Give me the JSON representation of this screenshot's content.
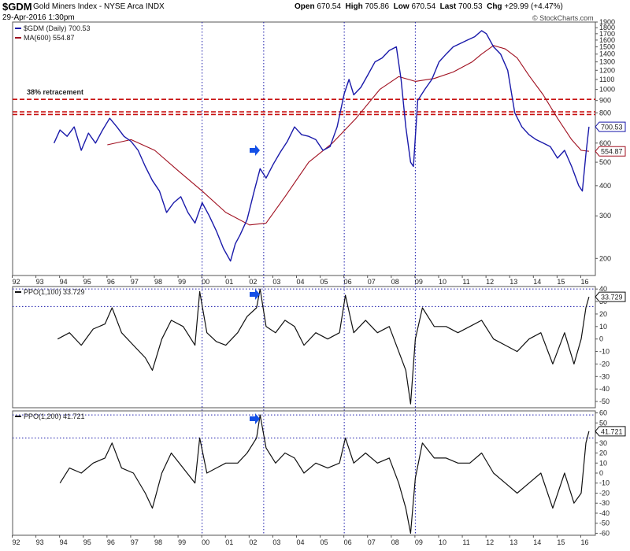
{
  "header": {
    "symbol": "$GDM",
    "name": "Gold Miners Index - NYSE Arca INDX",
    "datetime": "29-Apr-2016 1:30pm",
    "open_label": "Open",
    "open": "670.54",
    "high_label": "High",
    "high": "705.86",
    "low_label": "Low",
    "low": "670.54",
    "last_label": "Last",
    "last": "700.53",
    "chg_label": "Chg",
    "chg": "+29.99 (+4.47%)",
    "watermark": "© StockCharts.com"
  },
  "colors": {
    "price": "#1a1aaa",
    "ma": "#a01020",
    "retrace": "#c81010",
    "guide": "#1a1aaa",
    "osc": "#111111",
    "arrow": "#1450e6"
  },
  "chart_data": [
    {
      "type": "line",
      "panel": "price",
      "scale": "log",
      "ylim": [
        170,
        1900
      ],
      "xlim": [
        1992.0,
        2016.6
      ],
      "legend": [
        {
          "label": "$GDM (Daily)",
          "value": "700.53"
        },
        {
          "label": "MA(600)",
          "value": "554.87"
        }
      ],
      "annotation": "38% retracement",
      "retracement_levels": [
        910,
        808,
        788
      ],
      "price_tag": "700.53",
      "ma_tag": "554.87",
      "yticks": [
        200,
        300,
        400,
        500,
        600,
        700,
        800,
        900,
        1000,
        1100,
        1200,
        1300,
        1400,
        1500,
        1600,
        1700,
        1800,
        1900
      ],
      "series": [
        {
          "name": "$GDM (Daily)",
          "x": [
            1993.75,
            1994.0,
            1994.3,
            1994.6,
            1994.9,
            1995.2,
            1995.5,
            1995.8,
            1996.1,
            1996.4,
            1996.7,
            1997.0,
            1997.3,
            1997.6,
            1997.9,
            1998.2,
            1998.5,
            1998.8,
            1999.1,
            1999.4,
            1999.7,
            2000.0,
            2000.3,
            2000.6,
            2000.9,
            2001.2,
            2001.4,
            2001.6,
            2001.9,
            2002.2,
            2002.45,
            2002.7,
            2003.0,
            2003.3,
            2003.6,
            2003.9,
            2004.2,
            2004.5,
            2004.8,
            2005.1,
            2005.4,
            2005.7,
            2006.0,
            2006.2,
            2006.4,
            2006.7,
            2007.0,
            2007.3,
            2007.6,
            2007.9,
            2008.2,
            2008.4,
            2008.6,
            2008.8,
            2008.92,
            2009.1,
            2009.4,
            2009.7,
            2010.0,
            2010.3,
            2010.6,
            2010.9,
            2011.2,
            2011.5,
            2011.8,
            2012.0,
            2012.3,
            2012.6,
            2012.9,
            2013.2,
            2013.5,
            2013.8,
            2014.1,
            2014.4,
            2014.7,
            2015.0,
            2015.3,
            2015.6,
            2015.9,
            2016.05,
            2016.2,
            2016.33
          ],
          "values": [
            600,
            680,
            640,
            700,
            560,
            660,
            600,
            680,
            760,
            700,
            640,
            610,
            560,
            480,
            420,
            380,
            310,
            340,
            360,
            310,
            280,
            340,
            300,
            260,
            220,
            195,
            230,
            250,
            290,
            380,
            470,
            430,
            490,
            550,
            610,
            700,
            650,
            640,
            620,
            560,
            580,
            700,
            960,
            1100,
            950,
            1020,
            1150,
            1300,
            1350,
            1450,
            1500,
            1100,
            700,
            500,
            480,
            900,
            1000,
            1100,
            1300,
            1400,
            1500,
            1550,
            1600,
            1650,
            1750,
            1700,
            1500,
            1400,
            1200,
            800,
            700,
            650,
            620,
            600,
            580,
            520,
            560,
            480,
            400,
            380,
            540,
            700.53
          ]
        },
        {
          "name": "MA(600)",
          "x": [
            1996.0,
            1997.0,
            1998.0,
            1999.0,
            2000.0,
            2001.0,
            2002.0,
            2002.7,
            2003.5,
            2004.5,
            2005.5,
            2006.5,
            2007.5,
            2008.3,
            2009.0,
            2009.8,
            2010.6,
            2011.4,
            2011.8,
            2012.3,
            2012.8,
            2013.3,
            2013.8,
            2014.4,
            2015.0,
            2015.6,
            2016.0,
            2016.33
          ],
          "values": [
            590,
            620,
            560,
            460,
            380,
            310,
            275,
            280,
            360,
            500,
            600,
            760,
            1000,
            1130,
            1080,
            1110,
            1180,
            1300,
            1400,
            1520,
            1470,
            1350,
            1140,
            950,
            760,
            620,
            560,
            554.87
          ]
        }
      ]
    },
    {
      "type": "line",
      "panel": "osc1",
      "legend": "PPO(1,100) 33.729",
      "value_tag": "33.729",
      "ylim": [
        -55,
        42
      ],
      "yticks": [
        -50,
        -40,
        -30,
        -20,
        -10,
        0,
        10,
        20,
        30,
        40
      ],
      "reference_levels": [
        40,
        26
      ],
      "series": [
        {
          "name": "PPO(1,100)",
          "x": [
            1993.9,
            1994.4,
            1994.9,
            1995.4,
            1995.9,
            1996.2,
            1996.6,
            1997.1,
            1997.6,
            1997.9,
            1998.3,
            1998.7,
            1999.2,
            1999.7,
            1999.9,
            2000.2,
            2000.6,
            2001.0,
            2001.5,
            2001.9,
            2002.3,
            2002.45,
            2002.7,
            2003.1,
            2003.5,
            2003.9,
            2004.3,
            2004.8,
            2005.3,
            2005.8,
            2006.05,
            2006.4,
            2006.9,
            2007.4,
            2007.9,
            2008.3,
            2008.6,
            2008.8,
            2009.0,
            2009.3,
            2009.8,
            2010.3,
            2010.8,
            2011.3,
            2011.8,
            2012.3,
            2012.8,
            2013.3,
            2013.8,
            2014.3,
            2014.8,
            2015.3,
            2015.7,
            2016.0,
            2016.2,
            2016.33
          ],
          "values": [
            0,
            5,
            -5,
            8,
            12,
            25,
            5,
            -5,
            -15,
            -25,
            0,
            15,
            10,
            -5,
            38,
            5,
            -2,
            -5,
            5,
            18,
            25,
            40,
            10,
            5,
            15,
            10,
            -5,
            5,
            0,
            5,
            35,
            5,
            15,
            5,
            10,
            -10,
            -25,
            -52,
            0,
            25,
            10,
            10,
            5,
            10,
            15,
            0,
            -5,
            -10,
            0,
            5,
            -20,
            5,
            -20,
            0,
            25,
            33.729
          ]
        }
      ]
    },
    {
      "type": "line",
      "panel": "osc2",
      "legend": "PPO(1,200) 41.721",
      "value_tag": "41.721",
      "ylim": [
        -62,
        62
      ],
      "yticks": [
        -60,
        -50,
        -40,
        -30,
        -20,
        -10,
        0,
        10,
        20,
        30,
        40,
        50,
        60
      ],
      "reference_levels": [
        58,
        35
      ],
      "series": [
        {
          "name": "PPO(1,200)",
          "x": [
            1994.0,
            1994.4,
            1994.9,
            1995.4,
            1995.9,
            1996.2,
            1996.6,
            1997.1,
            1997.6,
            1997.9,
            1998.3,
            1998.7,
            1999.2,
            1999.7,
            1999.9,
            2000.2,
            2000.6,
            2001.0,
            2001.5,
            2001.9,
            2002.3,
            2002.45,
            2002.7,
            2003.1,
            2003.5,
            2003.9,
            2004.3,
            2004.8,
            2005.3,
            2005.8,
            2006.05,
            2006.4,
            2006.9,
            2007.4,
            2007.9,
            2008.3,
            2008.6,
            2008.8,
            2009.0,
            2009.3,
            2009.8,
            2010.3,
            2010.8,
            2011.3,
            2011.8,
            2012.3,
            2012.8,
            2013.3,
            2013.8,
            2014.3,
            2014.8,
            2015.3,
            2015.7,
            2016.0,
            2016.2,
            2016.33
          ],
          "values": [
            -10,
            5,
            0,
            10,
            15,
            30,
            5,
            0,
            -20,
            -35,
            0,
            20,
            5,
            -10,
            35,
            0,
            5,
            10,
            10,
            20,
            35,
            58,
            25,
            10,
            20,
            15,
            0,
            10,
            5,
            10,
            35,
            10,
            20,
            10,
            15,
            -10,
            -35,
            -60,
            -5,
            30,
            15,
            15,
            10,
            10,
            20,
            0,
            -10,
            -20,
            -10,
            0,
            -35,
            0,
            -30,
            -20,
            30,
            41.721
          ]
        }
      ]
    }
  ],
  "axis": {
    "x_labels": [
      "92",
      "93",
      "94",
      "95",
      "96",
      "97",
      "98",
      "99",
      "00",
      "01",
      "02",
      "03",
      "04",
      "05",
      "06",
      "07",
      "08",
      "09",
      "10",
      "11",
      "12",
      "13",
      "14",
      "15",
      "16"
    ],
    "x_values": [
      1992.15,
      1993.15,
      1994.15,
      1995.15,
      1996.15,
      1997.15,
      1998.15,
      1999.15,
      2000.15,
      2001.15,
      2002.15,
      2003.15,
      2004.15,
      2005.15,
      2006.15,
      2007.15,
      2008.15,
      2009.15,
      2010.15,
      2011.15,
      2012.15,
      2013.15,
      2014.15,
      2015.15,
      2016.15
    ],
    "vertical_guides": [
      2000.0,
      2002.6,
      2006.0,
      2009.0
    ]
  }
}
